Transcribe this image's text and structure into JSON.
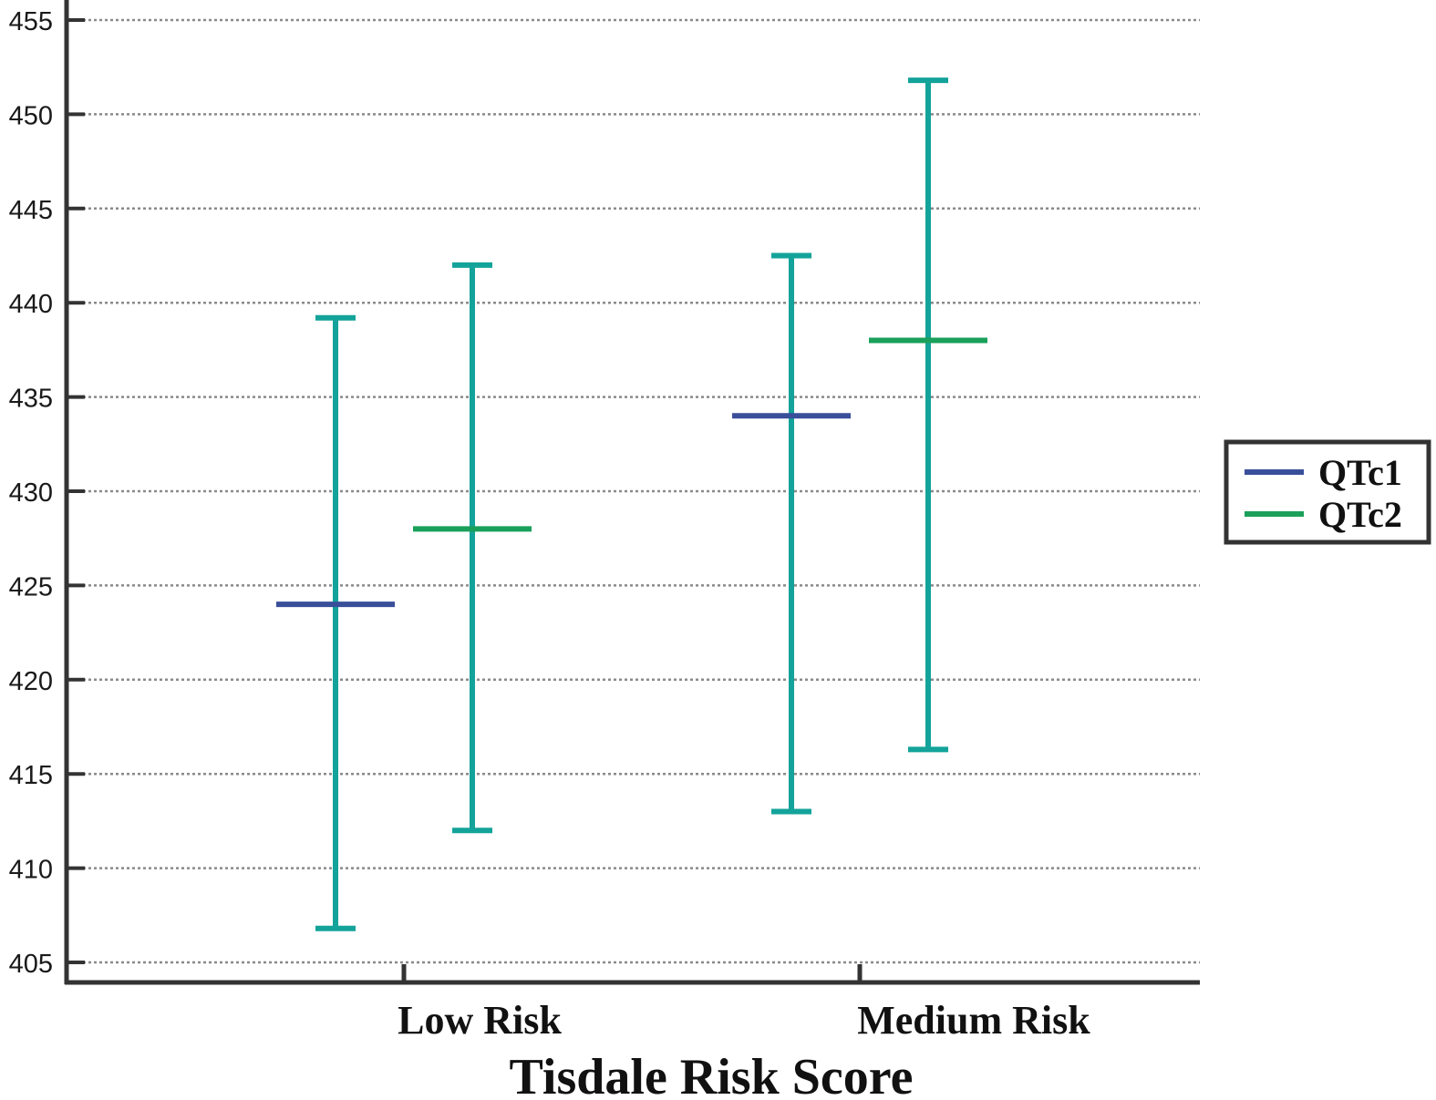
{
  "chart_data": {
    "type": "errorbar",
    "title": "",
    "xlabel": "Tisdale Risk Score",
    "ylabel": "",
    "categories": [
      "Low Risk",
      "Medium Risk"
    ],
    "ylim": [
      405,
      455
    ],
    "yticks": [
      405,
      410,
      415,
      420,
      425,
      430,
      435,
      440,
      445,
      450,
      455
    ],
    "grid": true,
    "legend_position": "right",
    "series": [
      {
        "name": "QTc1",
        "color": "#3a4f9a",
        "values": [
          424,
          434
        ],
        "lower": [
          406.8,
          413
        ],
        "upper": [
          439.2,
          442.5
        ]
      },
      {
        "name": "QTc2",
        "color": "#1aa05a",
        "values": [
          428,
          438
        ],
        "lower": [
          412,
          416.3
        ],
        "upper": [
          442,
          451.8
        ]
      }
    ],
    "errorbar_color": "#13a39a"
  }
}
